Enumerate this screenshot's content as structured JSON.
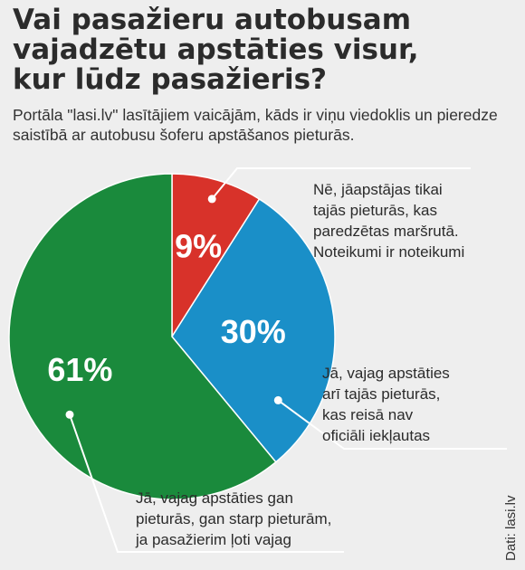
{
  "title": "Vai pasažieru autobusam\nvajadzētu apstāties visur,\nkur lūdz pasažieris?",
  "subtitle": "Portāla \"lasi.lv\" lasītājiem vaicājām, kāds ir viņu viedoklis un pieredze saistībā ar autobusu šoferu apstāšanos pieturās.",
  "source": "Dati: lasi.lv",
  "chart_data": {
    "type": "pie",
    "title": "Vai pasažieru autobusam vajadzētu apstāties visur, kur lūdz pasažieris?",
    "slices": [
      {
        "value": 9,
        "label": "9%",
        "color": "#d8322a",
        "annotation": [
          "Nē, jāapstājas tikai",
          "tajās pieturās, kas",
          "paredzētas maršrutā.",
          "Noteikumi ir noteikumi"
        ]
      },
      {
        "value": 30,
        "label": "30%",
        "color": "#1a8fc8",
        "annotation": [
          "Jā, vajag apstāties",
          "arī tajās pieturās,",
          "kas reisā nav",
          "oficiāli iekļautas"
        ]
      },
      {
        "value": 61,
        "label": "61%",
        "color": "#1a8a3c",
        "annotation": [
          "Jā, vajag apstāties gan",
          "pieturās, gan starp pieturām,",
          "ja pasažierim ļoti vajag"
        ]
      }
    ]
  }
}
